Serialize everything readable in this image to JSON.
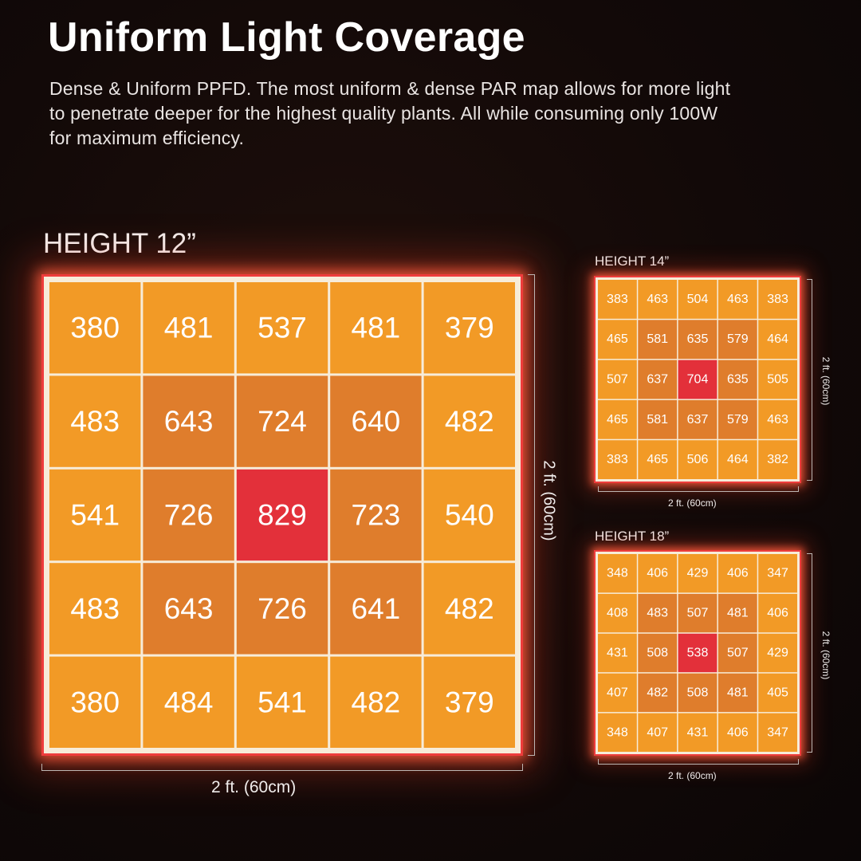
{
  "heading": {
    "title": "Uniform Light Coverage",
    "description": "Dense & Uniform PPFD. The most uniform & dense PAR map allows for more light to penetrate deeper for the highest quality plants.  All while consuming only 100W for maximum efficiency."
  },
  "colors": {
    "outer": "#f29a26",
    "middle": "#df7d2c",
    "center": "#e3303a",
    "gridline": "#f7ecd9",
    "border": "#ee3c3c"
  },
  "chart_data": [
    {
      "type": "heatmap",
      "title": "HEIGHT 12”",
      "xlabel": "2 ft. (60cm)",
      "ylabel": "2 ft. (60cm)",
      "values": [
        [
          380,
          481,
          537,
          481,
          379
        ],
        [
          483,
          643,
          724,
          640,
          482
        ],
        [
          541,
          726,
          829,
          723,
          540
        ],
        [
          483,
          643,
          726,
          641,
          482
        ],
        [
          380,
          484,
          541,
          482,
          379
        ]
      ]
    },
    {
      "type": "heatmap",
      "title": "HEIGHT 14”",
      "xlabel": "2 ft. (60cm)",
      "ylabel": "2 ft. (60cm)",
      "values": [
        [
          383,
          463,
          504,
          463,
          383
        ],
        [
          465,
          581,
          635,
          579,
          464
        ],
        [
          507,
          637,
          704,
          635,
          505
        ],
        [
          465,
          581,
          637,
          579,
          463
        ],
        [
          383,
          465,
          506,
          464,
          382
        ]
      ]
    },
    {
      "type": "heatmap",
      "title": "HEIGHT 18”",
      "xlabel": "2 ft. (60cm)",
      "ylabel": "2 ft. (60cm)",
      "values": [
        [
          348,
          406,
          429,
          406,
          347
        ],
        [
          408,
          483,
          507,
          481,
          406
        ],
        [
          431,
          508,
          538,
          507,
          429
        ],
        [
          407,
          482,
          508,
          481,
          405
        ],
        [
          348,
          407,
          431,
          406,
          347
        ]
      ]
    }
  ]
}
